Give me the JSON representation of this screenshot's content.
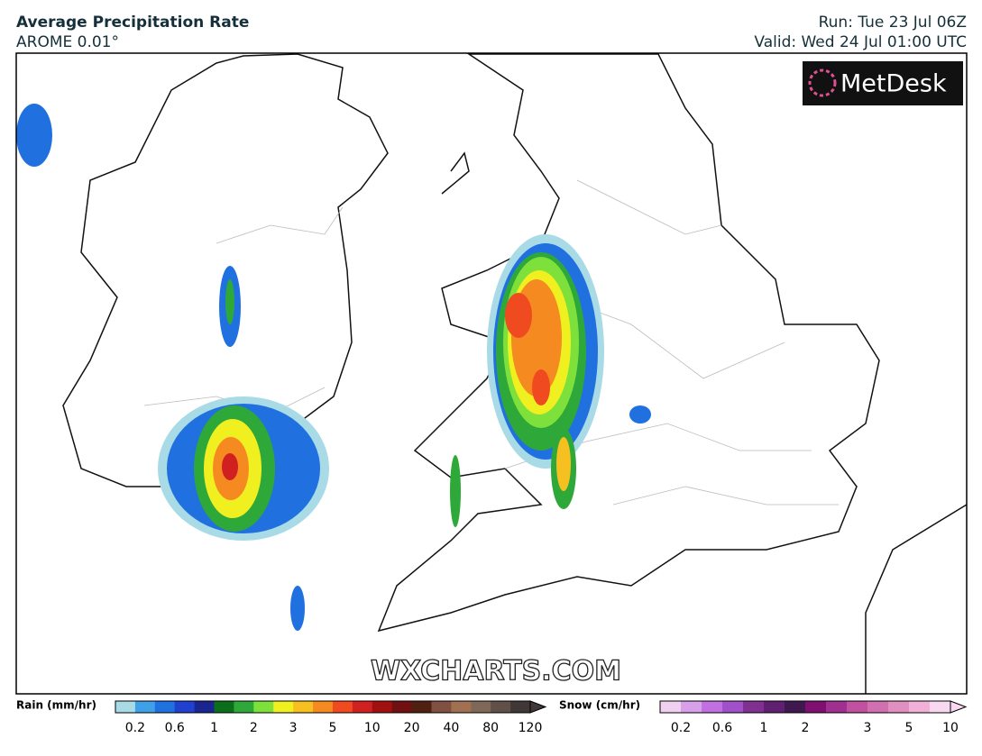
{
  "header": {
    "title": "Average Precipitation Rate",
    "model": "AROME 0.01°",
    "run": "Run: Tue 23 Jul 06Z",
    "valid": "Valid: Wed 24 Jul 01:00 UTC"
  },
  "logo": "MetDesk",
  "watermark": "WXCHARTS.COM",
  "rain_legend": {
    "label": "Rain (mm/hr)",
    "ticks": [
      "0.2",
      "0.6",
      "1",
      "2",
      "3",
      "5",
      "10",
      "20",
      "40",
      "80",
      "120"
    ],
    "colors": [
      "#a8dbe6",
      "#3fa0e8",
      "#2070e0",
      "#2040d0",
      "#1a2590",
      "#0b6e1a",
      "#2fa83a",
      "#7ee03a",
      "#f0f020",
      "#f5c020",
      "#f58a20",
      "#f04a20",
      "#d02020",
      "#a01010",
      "#701010",
      "#502010",
      "#805040",
      "#a07050",
      "#806858",
      "#605048",
      "#403838"
    ]
  },
  "snow_legend": {
    "label": "Snow (cm/hr)",
    "ticks": [
      "0.2",
      "0.6",
      "1",
      "2",
      "3",
      "5",
      "10"
    ],
    "colors": [
      "#f0d0f0",
      "#d8a0e8",
      "#c070e0",
      "#a050c8",
      "#803090",
      "#602070",
      "#401850",
      "#801070",
      "#a03090",
      "#c050a0",
      "#d070b0",
      "#e090c0",
      "#f0b0d8",
      "#f8d8f0"
    ]
  }
}
